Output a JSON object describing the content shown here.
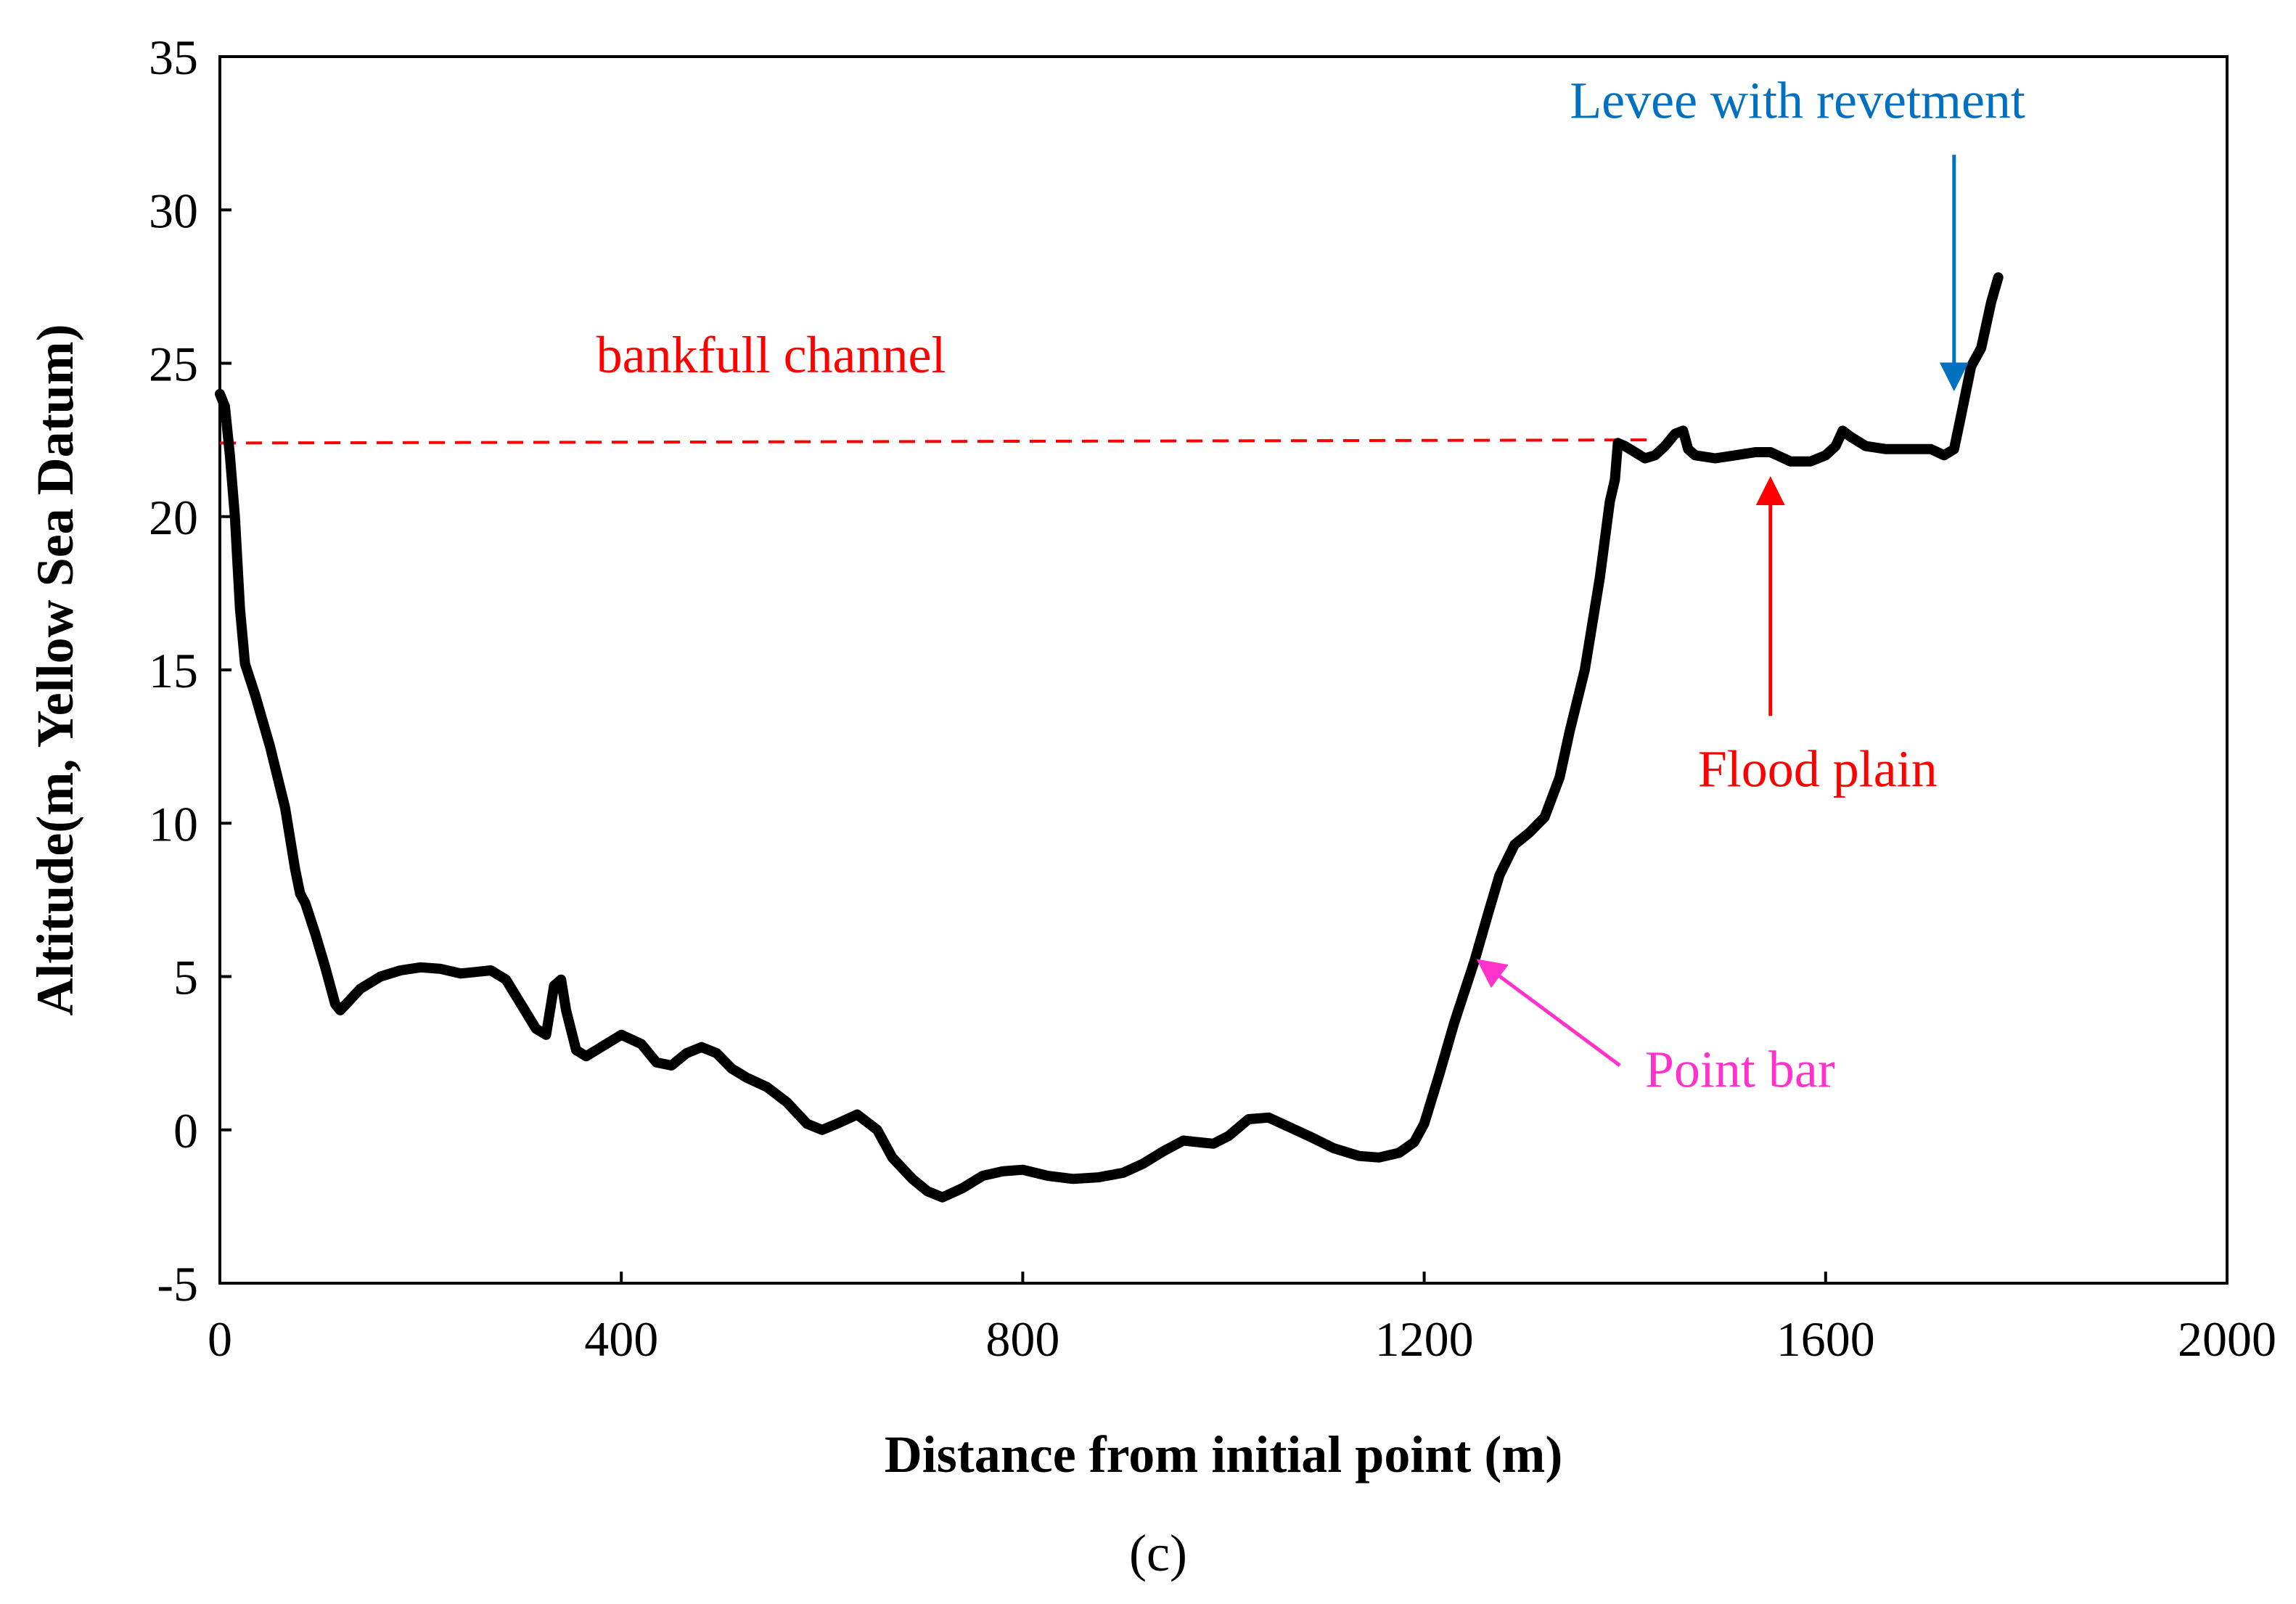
{
  "chart_data": {
    "type": "line",
    "caption": "(c)",
    "xlabel": "Distance from initial point (m)",
    "ylabel": "Altitude(m, Yellow Sea Datum)",
    "xlim": [
      0,
      2000
    ],
    "ylim": [
      -5,
      35
    ],
    "x_ticks": [
      0,
      400,
      800,
      1200,
      1600,
      2000
    ],
    "x_tick_labels": [
      "0",
      "400",
      "800",
      "1200",
      "1600",
      "2000"
    ],
    "y_ticks": [
      -5,
      0,
      5,
      10,
      15,
      20,
      25,
      30,
      35
    ],
    "y_tick_labels": [
      "-5",
      "0",
      "5",
      "10",
      "15",
      "20",
      "25",
      "30",
      "35"
    ],
    "grid": false,
    "series": [
      {
        "name": "Cross-section profile",
        "color": "#000000",
        "points": [
          [
            0,
            24
          ],
          [
            5,
            23.6
          ],
          [
            10,
            22
          ],
          [
            15,
            20
          ],
          [
            20,
            17
          ],
          [
            25,
            15.2
          ],
          [
            35,
            14.2
          ],
          [
            50,
            12.5
          ],
          [
            65,
            10.5
          ],
          [
            75,
            8.5
          ],
          [
            80,
            7.7
          ],
          [
            85,
            7.4
          ],
          [
            95,
            6.4
          ],
          [
            105,
            5.3
          ],
          [
            115,
            4.1
          ],
          [
            120,
            3.9
          ],
          [
            140,
            4.6
          ],
          [
            160,
            5.0
          ],
          [
            180,
            5.2
          ],
          [
            200,
            5.3
          ],
          [
            220,
            5.25
          ],
          [
            240,
            5.1
          ],
          [
            255,
            5.15
          ],
          [
            270,
            5.2
          ],
          [
            285,
            4.9
          ],
          [
            300,
            4.1
          ],
          [
            315,
            3.3
          ],
          [
            325,
            3.1
          ],
          [
            333,
            4.7
          ],
          [
            340,
            4.9
          ],
          [
            345,
            3.9
          ],
          [
            355,
            2.6
          ],
          [
            365,
            2.4
          ],
          [
            380,
            2.7
          ],
          [
            400,
            3.1
          ],
          [
            420,
            2.8
          ],
          [
            435,
            2.2
          ],
          [
            450,
            2.1
          ],
          [
            465,
            2.5
          ],
          [
            480,
            2.7
          ],
          [
            495,
            2.5
          ],
          [
            510,
            2.0
          ],
          [
            525,
            1.7
          ],
          [
            545,
            1.4
          ],
          [
            565,
            0.9
          ],
          [
            585,
            0.2
          ],
          [
            600,
            0.0
          ],
          [
            615,
            0.2
          ],
          [
            635,
            0.5
          ],
          [
            655,
            0.0
          ],
          [
            670,
            -0.9
          ],
          [
            690,
            -1.6
          ],
          [
            705,
            -2.0
          ],
          [
            720,
            -2.2
          ],
          [
            740,
            -1.9
          ],
          [
            760,
            -1.5
          ],
          [
            780,
            -1.35
          ],
          [
            800,
            -1.3
          ],
          [
            825,
            -1.5
          ],
          [
            850,
            -1.6
          ],
          [
            875,
            -1.55
          ],
          [
            900,
            -1.4
          ],
          [
            920,
            -1.1
          ],
          [
            940,
            -0.7
          ],
          [
            960,
            -0.35
          ],
          [
            975,
            -0.4
          ],
          [
            990,
            -0.45
          ],
          [
            1005,
            -0.2
          ],
          [
            1025,
            0.35
          ],
          [
            1045,
            0.4
          ],
          [
            1065,
            0.1
          ],
          [
            1085,
            -0.2
          ],
          [
            1110,
            -0.6
          ],
          [
            1135,
            -0.85
          ],
          [
            1155,
            -0.9
          ],
          [
            1175,
            -0.75
          ],
          [
            1190,
            -0.4
          ],
          [
            1200,
            0.2
          ],
          [
            1215,
            1.8
          ],
          [
            1230,
            3.5
          ],
          [
            1250,
            5.5
          ],
          [
            1265,
            7.2
          ],
          [
            1275,
            8.3
          ],
          [
            1290,
            9.3
          ],
          [
            1305,
            9.7
          ],
          [
            1320,
            10.2
          ],
          [
            1335,
            11.5
          ],
          [
            1345,
            13.0
          ],
          [
            1360,
            15.0
          ],
          [
            1375,
            18.0
          ],
          [
            1385,
            20.5
          ],
          [
            1390,
            21.2
          ],
          [
            1393,
            22.4
          ],
          [
            1400,
            22.3
          ],
          [
            1410,
            22.1
          ],
          [
            1420,
            21.9
          ],
          [
            1430,
            22.0
          ],
          [
            1440,
            22.3
          ],
          [
            1450,
            22.7
          ],
          [
            1458,
            22.8
          ],
          [
            1463,
            22.2
          ],
          [
            1470,
            22.0
          ],
          [
            1490,
            21.9
          ],
          [
            1510,
            22.0
          ],
          [
            1530,
            22.1
          ],
          [
            1545,
            22.1
          ],
          [
            1565,
            21.8
          ],
          [
            1585,
            21.8
          ],
          [
            1600,
            22.0
          ],
          [
            1610,
            22.3
          ],
          [
            1617,
            22.8
          ],
          [
            1625,
            22.6
          ],
          [
            1640,
            22.3
          ],
          [
            1660,
            22.2
          ],
          [
            1690,
            22.2
          ],
          [
            1705,
            22.2
          ],
          [
            1718,
            22.0
          ],
          [
            1728,
            22.2
          ],
          [
            1735,
            23.3
          ],
          [
            1745,
            24.9
          ],
          [
            1755,
            25.5
          ],
          [
            1765,
            27.0
          ],
          [
            1772,
            27.8
          ]
        ]
      },
      {
        "name": "bankfull channel",
        "color": "#ff0000",
        "style": "dashed",
        "points": [
          [
            0,
            22.4
          ],
          [
            1430,
            22.5
          ]
        ]
      }
    ],
    "annotations": [
      {
        "text": "bankfull  channel",
        "color": "#ff0000",
        "x": 375,
        "y": 24.7,
        "anchor": "start"
      },
      {
        "text": "Levee with revetment",
        "color": "#0070c0",
        "x": 1572,
        "y": 33,
        "anchor": "middle",
        "arrow": {
          "from": [
            1728,
            31.8
          ],
          "to": [
            1728,
            24.2
          ]
        }
      },
      {
        "text": "Flood  plain",
        "color": "#ff0000",
        "x": 1592,
        "y": 11.2,
        "anchor": "middle",
        "arrow": {
          "from": [
            1545,
            13.5
          ],
          "to": [
            1545,
            21.2
          ]
        }
      },
      {
        "text": "Point bar",
        "color": "#ff33cc",
        "x": 1420,
        "y": 1.4,
        "anchor": "start",
        "arrow": {
          "from": [
            1395,
            2.1
          ],
          "to": [
            1255,
            5.5
          ]
        }
      }
    ]
  }
}
